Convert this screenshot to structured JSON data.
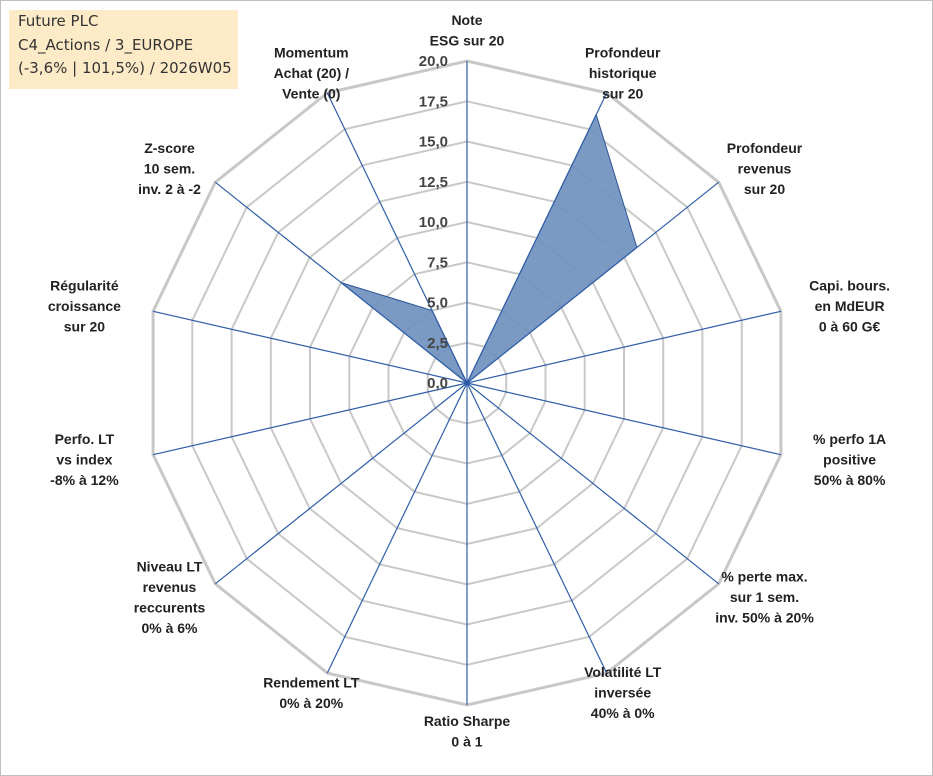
{
  "info": {
    "line1": "Future PLC",
    "line2": "C4_Actions / 3_EUROPE",
    "line3": "(-3,6% | 101,5%) / 2026W05"
  },
  "chart_data": {
    "type": "radar",
    "rmax": 20,
    "tick_step": 2.5,
    "ticks": [
      "0,0",
      "2,5",
      "5,0",
      "7,5",
      "10,0",
      "12,5",
      "15,0",
      "17,5",
      "20,0"
    ],
    "axes": [
      {
        "label": [
          "Note",
          "ESG sur 20"
        ],
        "value": 0
      },
      {
        "label": [
          "Profondeur",
          "historique",
          "sur 20"
        ],
        "value": 18.5
      },
      {
        "label": [
          "Profondeur",
          "revenus",
          "sur 20"
        ],
        "value": 13.5
      },
      {
        "label": [
          "Capi. bours.",
          "en MdEUR",
          "0 à 60 G€"
        ],
        "value": 0
      },
      {
        "label": [
          "% perfo 1A",
          "positive",
          "50% à 80%"
        ],
        "value": 0
      },
      {
        "label": [
          "% perte max.",
          "sur 1 sem.",
          "inv. 50% à 20%"
        ],
        "value": 0
      },
      {
        "label": [
          "Volatilité LT",
          "inversée",
          "40% à 0%"
        ],
        "value": 0
      },
      {
        "label": [
          "Ratio Sharpe",
          "0 à 1"
        ],
        "value": 0
      },
      {
        "label": [
          "Rendement LT",
          "0% à 20%"
        ],
        "value": 0
      },
      {
        "label": [
          "Niveau LT",
          "revenus",
          "reccurents",
          "0% à 6%"
        ],
        "value": 0
      },
      {
        "label": [
          "Perfo. LT",
          "vs index",
          "-8% à 12%"
        ],
        "value": 0
      },
      {
        "label": [
          "Régularité",
          "croissance",
          "sur 20"
        ],
        "value": 0
      },
      {
        "label": [
          "Z-score",
          "10 sem.",
          "inv. 2 à -2"
        ],
        "value": 10
      },
      {
        "label": [
          "Momentum",
          "Achat (20) /",
          "Vente (0)"
        ],
        "value": 5
      }
    ],
    "colors": {
      "fill": "#6f90be",
      "stroke": "#2f5597",
      "spoke": "#2f5ea8",
      "grid": "#c8c8c8"
    }
  }
}
